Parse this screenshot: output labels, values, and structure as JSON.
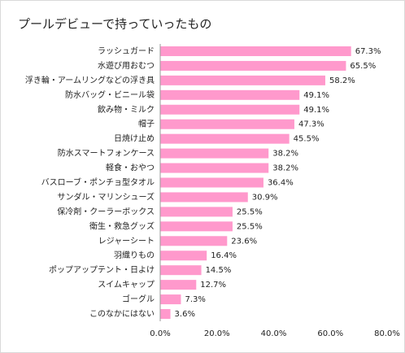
{
  "chart_data": {
    "type": "bar",
    "orientation": "horizontal",
    "title": "プールデビューで持っていったもの",
    "categories": [
      "ラッシュガード",
      "水遊び用おむつ",
      "浮き輪・アームリングなどの浮き具",
      "防水バッグ・ビニール袋",
      "飲み物・ミルク",
      "帽子",
      "日焼け止め",
      "防水スマートフォンケース",
      "軽食・おやつ",
      "バスローブ・ポンチョ型タオル",
      "サンダル・マリンシューズ",
      "保冷剤・クーラーボックス",
      "衛生・救急グッズ",
      "レジャーシート",
      "羽織りもの",
      "ポップアップテント・日よけ",
      "スイムキャップ",
      "ゴーグル",
      "このなかにはない"
    ],
    "values": [
      67.3,
      65.5,
      58.2,
      49.1,
      49.1,
      47.3,
      45.5,
      38.2,
      38.2,
      36.4,
      30.9,
      25.5,
      25.5,
      23.6,
      16.4,
      14.5,
      12.7,
      7.3,
      3.6
    ],
    "value_labels": [
      "67.3%",
      "65.5%",
      "58.2%",
      "49.1%",
      "49.1%",
      "47.3%",
      "45.5%",
      "38.2%",
      "38.2%",
      "36.4%",
      "30.9%",
      "25.5%",
      "25.5%",
      "23.6%",
      "16.4%",
      "14.5%",
      "12.7%",
      "7.3%",
      "3.6%"
    ],
    "color": "#ff99cc",
    "xlim": [
      0,
      80
    ],
    "xticks": [
      {
        "value": 0,
        "label": "0.0%"
      },
      {
        "value": 20,
        "label": "20.0%"
      },
      {
        "value": 40,
        "label": "40.0%"
      },
      {
        "value": 60,
        "label": "60.0%"
      },
      {
        "value": 80,
        "label": "80.0%"
      }
    ],
    "grid": false
  }
}
